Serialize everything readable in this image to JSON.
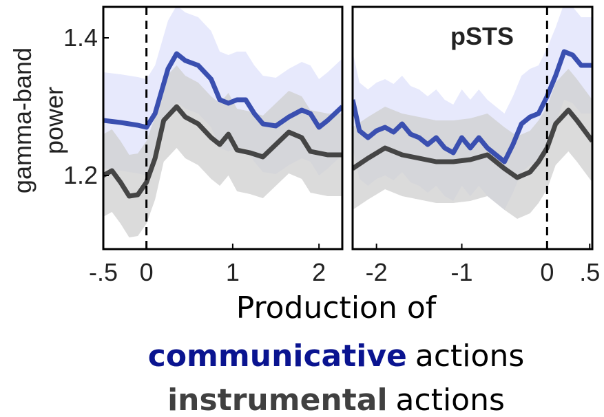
{
  "xlabel": "Production of",
  "legend_suffix": "actions",
  "chart_data": [
    {
      "type": "line",
      "ylabel": [
        "gamma-band",
        "power"
      ],
      "xlim": [
        -0.5,
        2.27
      ],
      "ylim": [
        1.093,
        1.445
      ],
      "xticks": [
        {
          "value": -0.5,
          "label": "-.5"
        },
        0,
        1,
        2
      ],
      "yticks": [
        1.2,
        1.4
      ],
      "vline": 0,
      "series": [
        {
          "name": "communicative",
          "color": "#3a4fb0",
          "band_color": "#dfe2fb",
          "error": 0.07,
          "x": [
            -0.5,
            -0.3,
            -0.1,
            0,
            0.1,
            0.25,
            0.35,
            0.45,
            0.6,
            0.75,
            0.85,
            0.95,
            1.05,
            1.15,
            1.25,
            1.35,
            1.5,
            1.65,
            1.8,
            1.9,
            2.0,
            2.1,
            2.27
          ],
          "values": [
            1.28,
            1.277,
            1.273,
            1.27,
            1.29,
            1.355,
            1.377,
            1.367,
            1.36,
            1.34,
            1.31,
            1.305,
            1.31,
            1.31,
            1.29,
            1.275,
            1.272,
            1.285,
            1.295,
            1.29,
            1.27,
            1.28,
            1.3
          ]
        },
        {
          "name": "instrumental",
          "color": "#454545",
          "band_color": "#cfcfcf",
          "error": 0.06,
          "x": [
            -0.5,
            -0.4,
            -0.3,
            -0.2,
            -0.1,
            0,
            0.1,
            0.2,
            0.35,
            0.45,
            0.6,
            0.75,
            0.85,
            0.95,
            1.05,
            1.2,
            1.35,
            1.5,
            1.65,
            1.8,
            1.9,
            2.1,
            2.27
          ],
          "values": [
            1.2,
            1.207,
            1.19,
            1.17,
            1.172,
            1.19,
            1.225,
            1.28,
            1.3,
            1.285,
            1.275,
            1.255,
            1.245,
            1.26,
            1.237,
            1.233,
            1.227,
            1.245,
            1.263,
            1.255,
            1.235,
            1.23,
            1.23
          ]
        }
      ]
    },
    {
      "type": "line",
      "title": "pSTS",
      "xlim": [
        -2.28,
        0.53
      ],
      "ylim": [
        1.093,
        1.445
      ],
      "xticks": [
        -2,
        -1,
        0,
        {
          "value": 0.5,
          "label": ".5"
        }
      ],
      "vline": 0,
      "series": [
        {
          "name": "communicative",
          "color": "#3a4fb0",
          "band_color": "#dfe2fb",
          "error": 0.07,
          "x": [
            -2.28,
            -2.2,
            -2.1,
            -2.0,
            -1.9,
            -1.8,
            -1.7,
            -1.6,
            -1.5,
            -1.4,
            -1.3,
            -1.2,
            -1.1,
            -1.0,
            -0.9,
            -0.8,
            -0.7,
            -0.6,
            -0.5,
            -0.4,
            -0.3,
            -0.2,
            -0.1,
            0,
            0.1,
            0.2,
            0.3,
            0.4,
            0.53
          ],
          "values": [
            1.31,
            1.265,
            1.255,
            1.265,
            1.27,
            1.263,
            1.275,
            1.26,
            1.255,
            1.245,
            1.255,
            1.24,
            1.233,
            1.255,
            1.24,
            1.255,
            1.24,
            1.23,
            1.22,
            1.245,
            1.275,
            1.285,
            1.29,
            1.315,
            1.345,
            1.38,
            1.375,
            1.36,
            1.36
          ]
        },
        {
          "name": "instrumental",
          "color": "#454545",
          "band_color": "#cfcfcf",
          "error": 0.06,
          "x": [
            -2.28,
            -2.1,
            -1.9,
            -1.7,
            -1.5,
            -1.3,
            -1.1,
            -0.9,
            -0.7,
            -0.5,
            -0.35,
            -0.2,
            -0.1,
            0,
            0.1,
            0.25,
            0.35,
            0.53
          ],
          "values": [
            1.21,
            1.225,
            1.24,
            1.23,
            1.225,
            1.22,
            1.22,
            1.223,
            1.23,
            1.21,
            1.197,
            1.205,
            1.22,
            1.24,
            1.275,
            1.295,
            1.28,
            1.25
          ]
        }
      ]
    }
  ]
}
